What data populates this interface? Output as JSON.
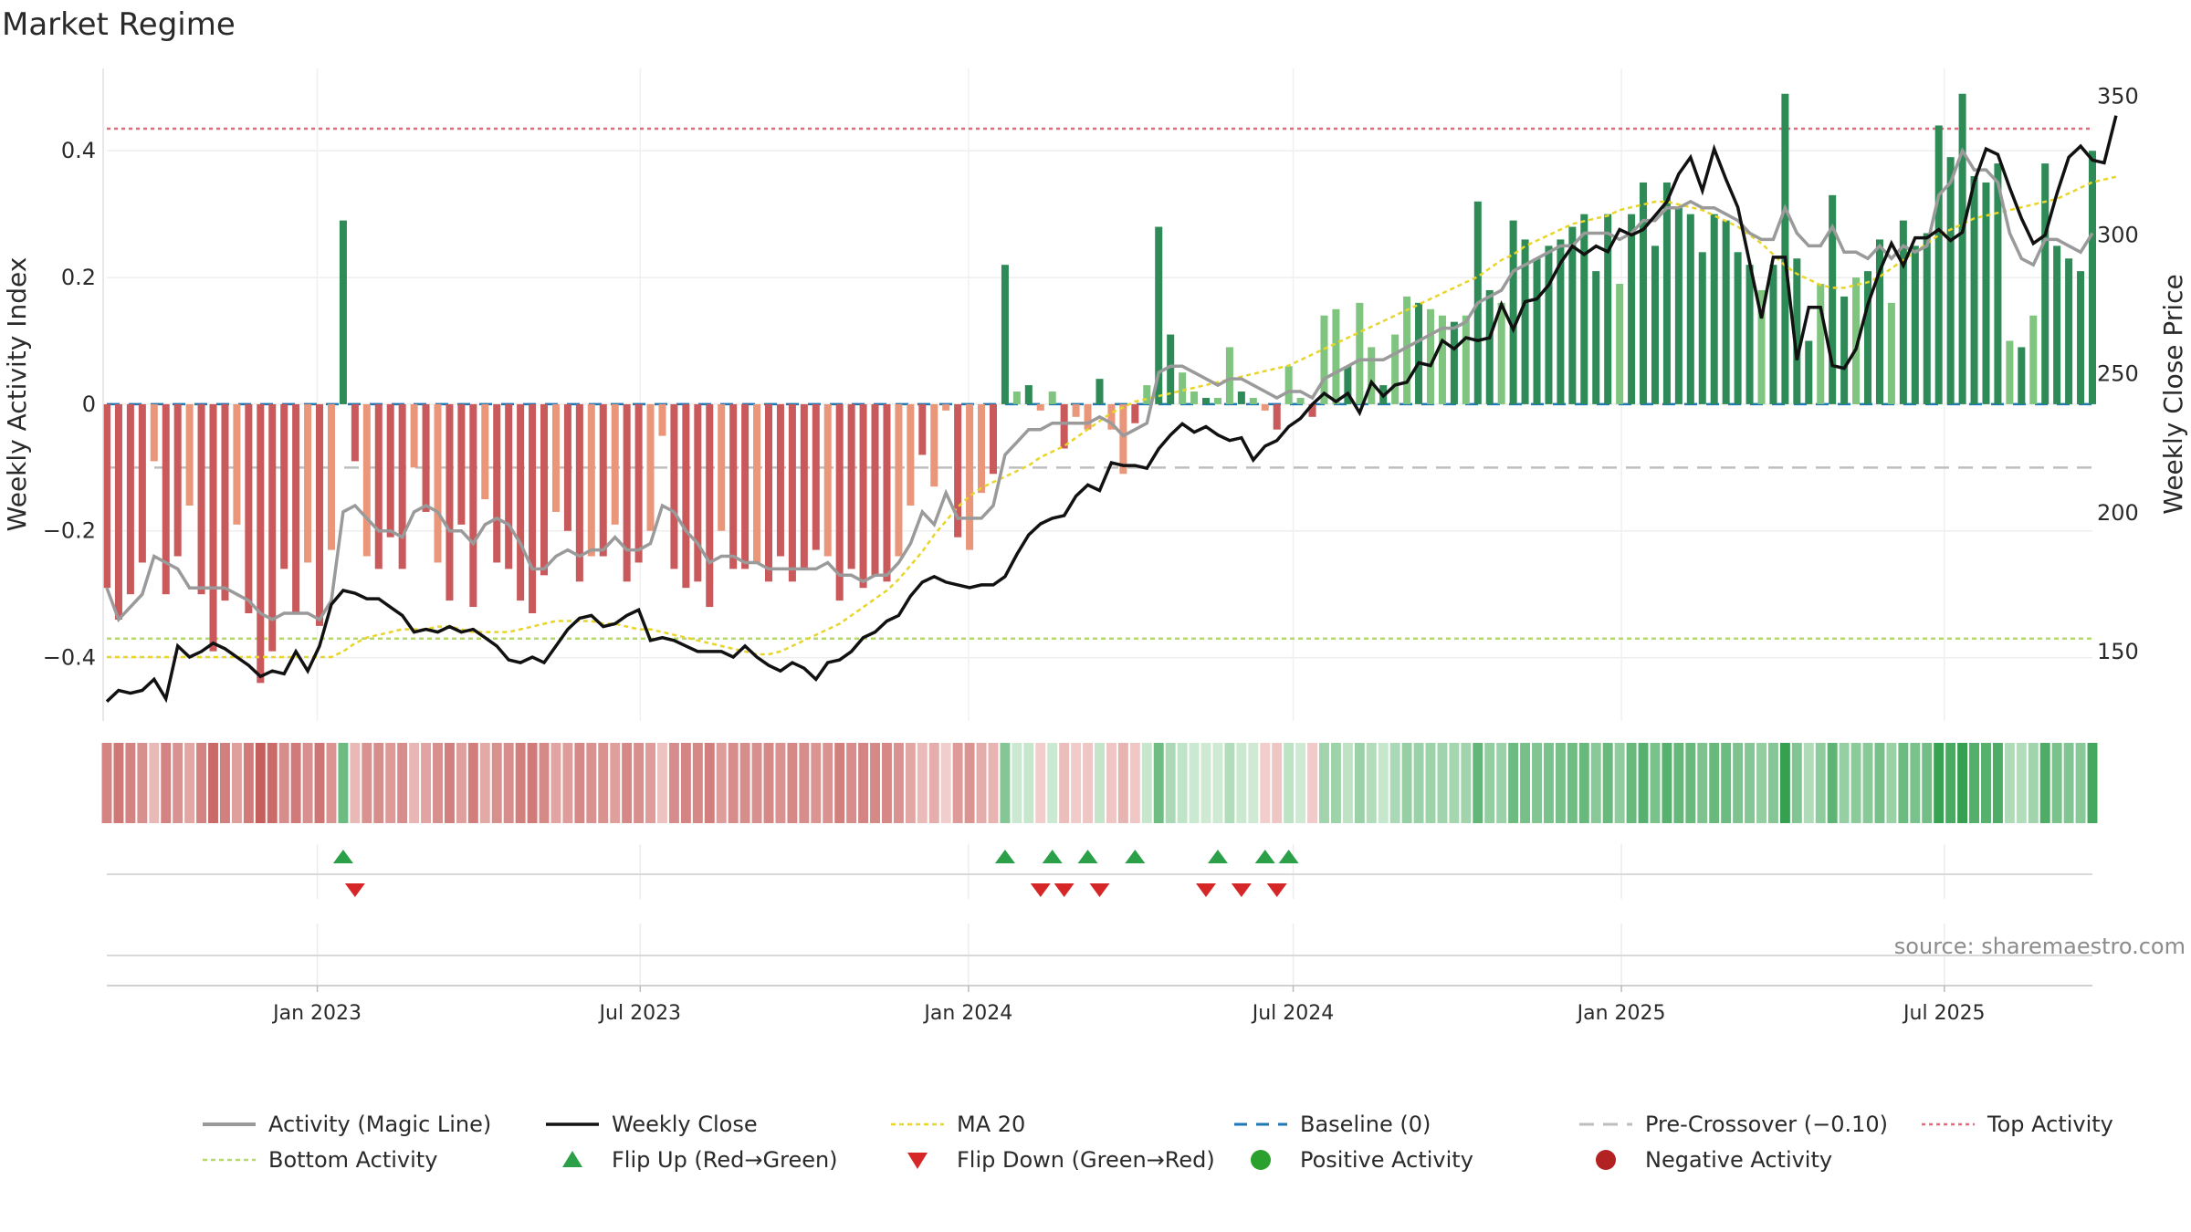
{
  "title": "Market Regime",
  "source": "source: sharemaestro.com",
  "colors": {
    "activity_line": "#9a9a9a",
    "close_line": "#111111",
    "ma20": "#e8d52a",
    "baseline": "#1f77b4",
    "pre_crossover": "#bdbdbd",
    "top_activity": "#e06a7a",
    "bottom_activity": "#b5d96a",
    "flip_up": "#2ca048",
    "flip_down": "#d62728",
    "positive": "#2e8b57",
    "negative": "#c0504d"
  },
  "chart_data": {
    "type": "bar+line",
    "left_axis_label": "Weekly Activity Index",
    "right_axis_label": "Weekly Close Price",
    "left_ylim": [
      -0.5,
      0.53
    ],
    "left_ticks": [
      -0.4,
      -0.2,
      0,
      0.2,
      0.4
    ],
    "left_tick_labels": [
      "−0.4",
      "−0.2",
      "0",
      "0.2",
      "0.4"
    ],
    "right_ylim": [
      125,
      360
    ],
    "right_ticks": [
      150,
      200,
      250,
      300,
      350
    ],
    "right_tick_labels": [
      "150",
      "200",
      "250",
      "300",
      "350"
    ],
    "x_start": "2022-09-05",
    "x_end": "2025-09-22",
    "x_ticks": [
      "2023-01-01",
      "2023-07-01",
      "2024-01-01",
      "2024-07-01",
      "2025-01-01",
      "2025-07-01"
    ],
    "x_tick_labels": [
      "Jan 2023",
      "Jul 2023",
      "Jan 2024",
      "Jul 2024",
      "Jan 2025",
      "Jul 2025"
    ],
    "reference_lines": {
      "top_activity": 0.435,
      "bottom_activity": -0.37,
      "pre_crossover": -0.1,
      "baseline": 0
    },
    "activity": [
      -0.29,
      -0.34,
      -0.3,
      -0.25,
      -0.09,
      -0.3,
      -0.24,
      -0.16,
      -0.3,
      -0.39,
      -0.31,
      -0.19,
      -0.33,
      -0.44,
      -0.39,
      -0.26,
      -0.33,
      -0.25,
      -0.35,
      -0.23,
      0.29,
      -0.09,
      -0.24,
      -0.26,
      -0.21,
      -0.26,
      -0.1,
      -0.17,
      -0.25,
      -0.31,
      -0.19,
      -0.32,
      -0.15,
      -0.25,
      -0.26,
      -0.31,
      -0.33,
      -0.27,
      -0.17,
      -0.2,
      -0.28,
      -0.24,
      -0.24,
      -0.19,
      -0.28,
      -0.25,
      -0.2,
      -0.05,
      -0.26,
      -0.29,
      -0.28,
      -0.32,
      -0.2,
      -0.26,
      -0.26,
      -0.25,
      -0.28,
      -0.24,
      -0.28,
      -0.26,
      -0.23,
      -0.24,
      -0.31,
      -0.26,
      -0.29,
      -0.27,
      -0.28,
      -0.24,
      -0.16,
      -0.08,
      -0.13,
      -0.01,
      -0.21,
      -0.23,
      -0.14,
      -0.11,
      0.22,
      0.02,
      0.03,
      -0.01,
      0.02,
      -0.07,
      -0.02,
      -0.04,
      0.04,
      -0.04,
      -0.11,
      -0.03,
      0.03,
      0.28,
      0.11,
      0.05,
      0.02,
      0.01,
      0.01,
      0.09,
      0.02,
      0.01,
      -0.01,
      -0.04,
      0.06,
      0.01,
      -0.02,
      0.14,
      0.15,
      0.06,
      0.16,
      0.09,
      0.03,
      0.11,
      0.17,
      0.16,
      0.15,
      0.14,
      0.13,
      0.14,
      0.32,
      0.18,
      0.16,
      0.29,
      0.26,
      0.23,
      0.25,
      0.26,
      0.28,
      0.3,
      0.21,
      0.3,
      0.19,
      0.3,
      0.35,
      0.25,
      0.35,
      0.31,
      0.3,
      0.24,
      0.3,
      0.29,
      0.24,
      0.22,
      0.18,
      0.22,
      0.49,
      0.23,
      0.1,
      0.19,
      0.33,
      0.17,
      0.2,
      0.21,
      0.26,
      0.16,
      0.29,
      0.25,
      0.27,
      0.44,
      0.39,
      0.49,
      0.36,
      0.35,
      0.38,
      0.1,
      0.09,
      0.14,
      0.38,
      0.25,
      0.23,
      0.21,
      0.4
    ],
    "activity_line": [
      -0.29,
      -0.34,
      -0.32,
      -0.3,
      -0.24,
      -0.25,
      -0.26,
      -0.29,
      -0.29,
      -0.29,
      -0.29,
      -0.3,
      -0.31,
      -0.33,
      -0.34,
      -0.33,
      -0.33,
      -0.33,
      -0.34,
      -0.31,
      -0.17,
      -0.16,
      -0.18,
      -0.2,
      -0.2,
      -0.21,
      -0.17,
      -0.16,
      -0.17,
      -0.2,
      -0.2,
      -0.22,
      -0.19,
      -0.18,
      -0.19,
      -0.22,
      -0.26,
      -0.26,
      -0.24,
      -0.23,
      -0.24,
      -0.23,
      -0.23,
      -0.21,
      -0.23,
      -0.23,
      -0.22,
      -0.16,
      -0.17,
      -0.2,
      -0.22,
      -0.25,
      -0.24,
      -0.24,
      -0.25,
      -0.25,
      -0.26,
      -0.26,
      -0.26,
      -0.26,
      -0.26,
      -0.25,
      -0.27,
      -0.27,
      -0.28,
      -0.27,
      -0.27,
      -0.25,
      -0.22,
      -0.17,
      -0.19,
      -0.14,
      -0.18,
      -0.18,
      -0.18,
      -0.16,
      -0.08,
      -0.06,
      -0.04,
      -0.04,
      -0.03,
      -0.03,
      -0.03,
      -0.03,
      -0.02,
      -0.03,
      -0.05,
      -0.04,
      -0.03,
      0.05,
      0.06,
      0.06,
      0.05,
      0.04,
      0.03,
      0.04,
      0.04,
      0.03,
      0.02,
      0.01,
      0.02,
      0.02,
      0.01,
      0.04,
      0.05,
      0.06,
      0.07,
      0.07,
      0.07,
      0.08,
      0.09,
      0.1,
      0.11,
      0.12,
      0.12,
      0.13,
      0.16,
      0.17,
      0.18,
      0.21,
      0.22,
      0.23,
      0.24,
      0.25,
      0.25,
      0.27,
      0.27,
      0.27,
      0.26,
      0.27,
      0.29,
      0.29,
      0.31,
      0.31,
      0.32,
      0.31,
      0.31,
      0.3,
      0.29,
      0.27,
      0.26,
      0.26,
      0.31,
      0.27,
      0.25,
      0.25,
      0.28,
      0.24,
      0.24,
      0.23,
      0.25,
      0.23,
      0.25,
      0.24,
      0.25,
      0.33,
      0.35,
      0.4,
      0.37,
      0.37,
      0.35,
      0.27,
      0.23,
      0.22,
      0.26,
      0.26,
      0.25,
      0.24,
      0.27
    ],
    "close": [
      132,
      136,
      135,
      136,
      140,
      133,
      152,
      148,
      150,
      153,
      151,
      148,
      145,
      141,
      143,
      142,
      150,
      143,
      152,
      167,
      172,
      171,
      169,
      169,
      166,
      163,
      157,
      158,
      157,
      159,
      157,
      158,
      155,
      152,
      147,
      146,
      148,
      146,
      152,
      158,
      162,
      163,
      159,
      160,
      163,
      165,
      154,
      155,
      154,
      152,
      150,
      150,
      150,
      148,
      152,
      148,
      145,
      143,
      146,
      144,
      140,
      146,
      147,
      150,
      155,
      157,
      161,
      163,
      170,
      175,
      177,
      175,
      174,
      173,
      174,
      174,
      177,
      185,
      192,
      196,
      198,
      199,
      206,
      210,
      208,
      218,
      217,
      217,
      216,
      223,
      228,
      232,
      229,
      231,
      228,
      226,
      227,
      219,
      224,
      226,
      231,
      234,
      239,
      243,
      240,
      243,
      236,
      247,
      242,
      246,
      247,
      254,
      253,
      262,
      259,
      263,
      262,
      263,
      275,
      266,
      276,
      277,
      282,
      290,
      296,
      293,
      296,
      294,
      302,
      300,
      302,
      307,
      312,
      322,
      328,
      316,
      331,
      320,
      310,
      290,
      270,
      292,
      292,
      255,
      274,
      274,
      253,
      252,
      259,
      275,
      287,
      297,
      289,
      299,
      299,
      302,
      298,
      301,
      319,
      331,
      329,
      317,
      306,
      297,
      300,
      315,
      328,
      332,
      327,
      326,
      343
    ],
    "ma20": [
      148,
      148,
      148,
      148,
      148,
      148,
      148,
      148,
      148,
      148,
      148,
      148,
      148,
      148,
      148,
      148,
      148,
      148,
      148,
      148,
      150,
      153,
      155,
      156,
      157,
      158,
      158,
      158,
      159,
      159,
      158,
      157,
      157,
      157,
      157,
      158,
      159,
      160,
      161,
      161,
      161,
      161,
      160,
      160,
      159,
      158,
      158,
      157,
      156,
      155,
      154,
      153,
      152,
      151,
      150,
      149,
      149,
      150,
      152,
      154,
      156,
      158,
      160,
      163,
      166,
      169,
      172,
      176,
      181,
      186,
      192,
      197,
      202,
      206,
      209,
      211,
      213,
      215,
      217,
      220,
      222,
      224,
      227,
      230,
      233,
      236,
      238,
      240,
      241,
      242,
      243,
      244,
      245,
      246,
      247,
      248,
      249,
      250,
      251,
      252,
      253,
      255,
      257,
      259,
      261,
      263,
      265,
      267,
      269,
      271,
      273,
      275,
      277,
      279,
      281,
      283,
      285,
      288,
      291,
      293,
      296,
      298,
      300,
      302,
      304,
      305,
      306,
      307,
      309,
      310,
      311,
      312,
      312,
      311,
      310,
      309,
      307,
      305,
      303,
      300,
      297,
      293,
      289,
      286,
      284,
      282,
      281,
      281,
      282,
      283,
      285,
      288,
      291,
      294,
      297,
      300,
      302,
      304,
      306,
      307,
      308,
      309,
      310,
      311,
      312,
      313,
      315,
      317,
      319,
      320,
      321
    ],
    "flip_up_weeks": [
      20,
      76,
      80,
      83,
      87,
      94,
      98,
      100
    ],
    "flip_down_weeks": [
      21,
      79,
      81,
      84,
      93,
      96,
      99
    ]
  },
  "legend": [
    {
      "key": "activity_line",
      "label": "Activity (Magic Line)"
    },
    {
      "key": "close_line",
      "label": "Weekly Close"
    },
    {
      "key": "ma20",
      "label": "MA 20"
    },
    {
      "key": "baseline",
      "label": "Baseline (0)"
    },
    {
      "key": "pre_crossover",
      "label": "Pre-Crossover (−0.10)"
    },
    {
      "key": "top_activity",
      "label": "Top Activity"
    },
    {
      "key": "bottom_activity",
      "label": "Bottom Activity"
    },
    {
      "key": "flip_up",
      "label": "Flip Up (Red→Green)"
    },
    {
      "key": "flip_down",
      "label": "Flip Down (Green→Red)"
    },
    {
      "key": "positive",
      "label": "Positive Activity"
    },
    {
      "key": "negative",
      "label": "Negative Activity"
    }
  ]
}
